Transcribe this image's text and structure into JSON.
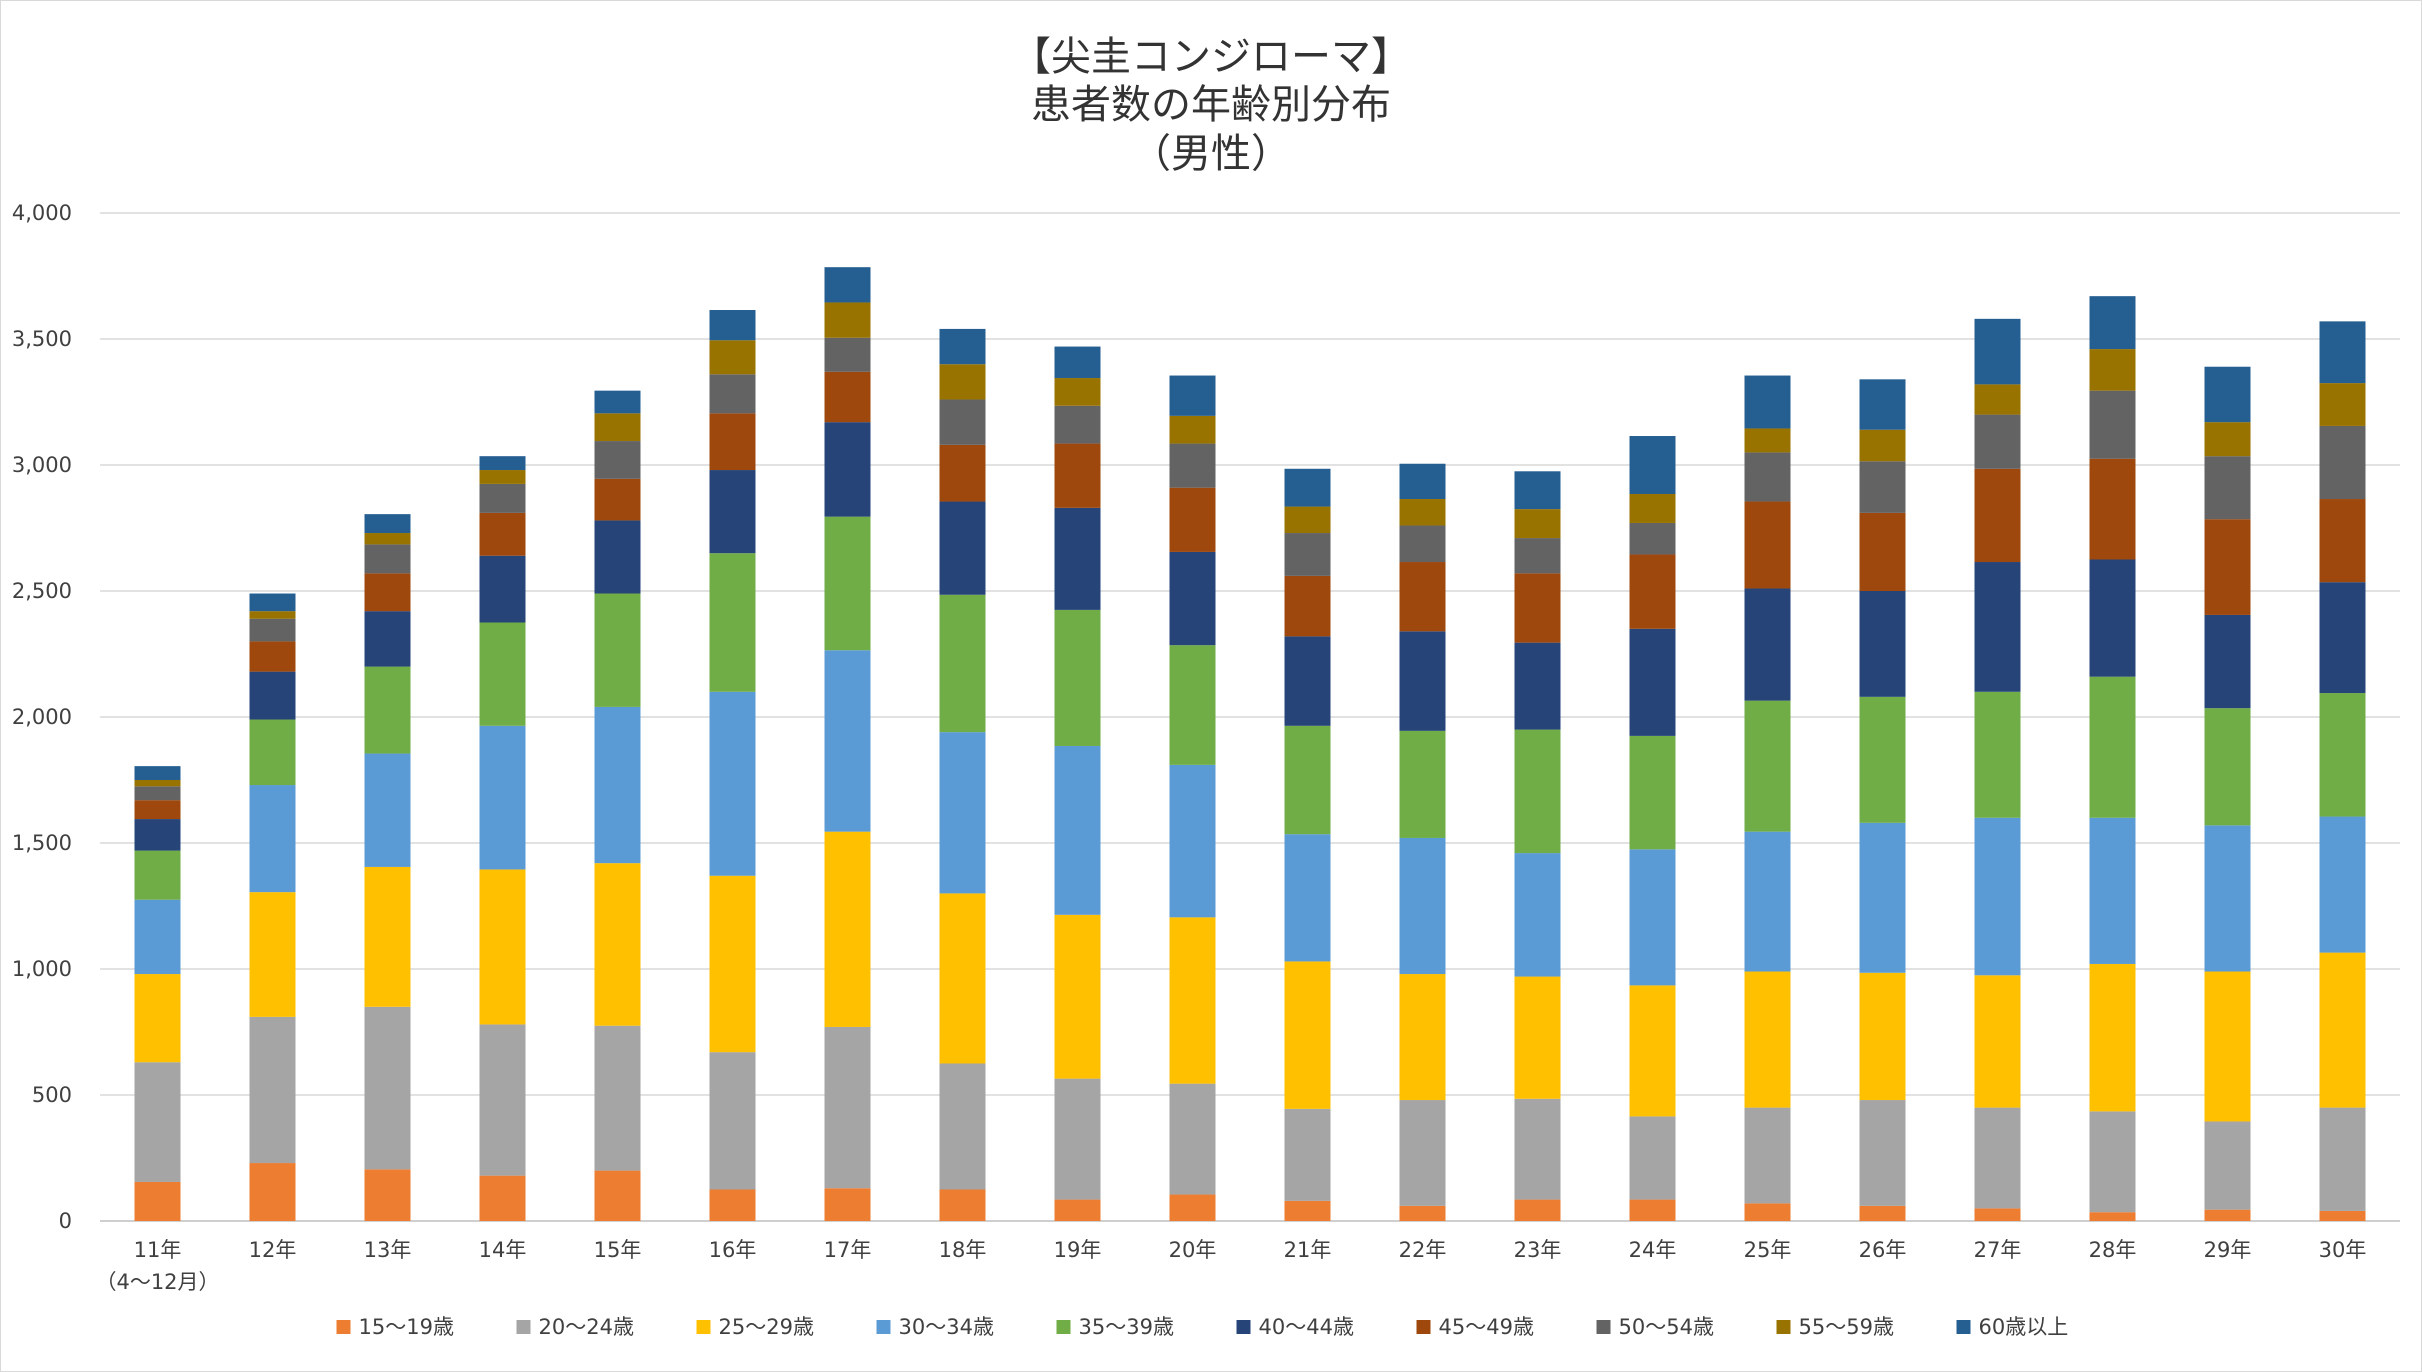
{
  "chart_data": {
    "type": "bar",
    "stacked": true,
    "title_lines": [
      "【尖圭コンジローマ】",
      "患者数の年齢別分布",
      "（男性）"
    ],
    "categories": [
      "11年",
      "12年",
      "13年",
      "14年",
      "15年",
      "16年",
      "17年",
      "18年",
      "19年",
      "20年",
      "21年",
      "22年",
      "23年",
      "24年",
      "25年",
      "26年",
      "27年",
      "28年",
      "29年",
      "30年"
    ],
    "first_category_sublabel": "（4～12月）",
    "ylim": [
      0,
      4000
    ],
    "yticks": [
      "0",
      "500",
      "1,000",
      "1,500",
      "2,000",
      "2,500",
      "3,000",
      "3,500",
      "4,000"
    ],
    "grid": true,
    "legend_position": "bottom",
    "series": [
      {
        "name": "15～19歳",
        "color": "#ED7D31",
        "values": [
          155,
          230,
          205,
          180,
          200,
          125,
          130,
          125,
          85,
          105,
          80,
          60,
          85,
          85,
          70,
          60,
          50,
          35,
          45,
          40
        ]
      },
      {
        "name": "20～24歳",
        "color": "#A5A5A5",
        "values": [
          475,
          580,
          645,
          600,
          575,
          545,
          640,
          500,
          480,
          440,
          365,
          420,
          400,
          330,
          380,
          420,
          400,
          400,
          350,
          410
        ]
      },
      {
        "name": "25～29歳",
        "color": "#FFC000",
        "values": [
          350,
          495,
          555,
          615,
          645,
          700,
          775,
          675,
          650,
          660,
          585,
          500,
          485,
          520,
          540,
          505,
          525,
          585,
          595,
          615
        ]
      },
      {
        "name": "30～34歳",
        "color": "#5B9BD5",
        "values": [
          295,
          425,
          450,
          570,
          620,
          730,
          720,
          640,
          670,
          605,
          505,
          540,
          490,
          540,
          555,
          595,
          625,
          580,
          580,
          540
        ]
      },
      {
        "name": "35～39歳",
        "color": "#70AD47",
        "values": [
          195,
          260,
          345,
          410,
          450,
          550,
          530,
          545,
          540,
          475,
          430,
          425,
          490,
          450,
          520,
          500,
          500,
          560,
          465,
          490
        ]
      },
      {
        "name": "40～44歳",
        "color": "#264478",
        "values": [
          125,
          190,
          220,
          265,
          290,
          330,
          375,
          370,
          405,
          370,
          355,
          395,
          345,
          425,
          445,
          420,
          515,
          465,
          370,
          440
        ]
      },
      {
        "name": "45～49歳",
        "color": "#9E480E",
        "values": [
          75,
          120,
          150,
          170,
          165,
          225,
          200,
          225,
          255,
          255,
          240,
          275,
          275,
          295,
          345,
          310,
          370,
          400,
          380,
          330
        ]
      },
      {
        "name": "50～54歳",
        "color": "#636363",
        "values": [
          55,
          90,
          115,
          115,
          150,
          155,
          135,
          180,
          150,
          175,
          170,
          145,
          140,
          125,
          195,
          205,
          215,
          270,
          250,
          290
        ]
      },
      {
        "name": "55～59歳",
        "color": "#997300",
        "values": [
          25,
          30,
          45,
          55,
          110,
          135,
          140,
          140,
          110,
          110,
          105,
          105,
          115,
          115,
          95,
          125,
          120,
          165,
          135,
          170
        ]
      },
      {
        "name": "60歳以上",
        "color": "#255E91",
        "values": [
          55,
          70,
          75,
          55,
          90,
          120,
          140,
          140,
          125,
          160,
          150,
          140,
          150,
          230,
          210,
          200,
          260,
          210,
          220,
          245
        ]
      }
    ]
  }
}
